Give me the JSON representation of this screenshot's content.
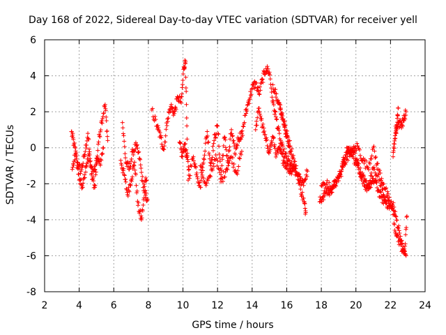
{
  "chart_data": {
    "type": "scatter",
    "title": "Day 168 of 2022, Sidereal Day-to-day VTEC variation (SDTVAR) for receiver yell",
    "xlabel": "GPS time / hours",
    "ylabel": "SDTVAR / TECUs",
    "xlim": [
      2,
      24
    ],
    "ylim": [
      -8,
      6
    ],
    "xticks": [
      2,
      4,
      6,
      8,
      10,
      12,
      14,
      16,
      18,
      20,
      22,
      24
    ],
    "yticks": [
      -8,
      -6,
      -4,
      -2,
      0,
      2,
      4,
      6
    ],
    "grid": true,
    "marker": "+",
    "color": "#ff0000",
    "series": [
      {
        "name": "SDTVAR",
        "segments": [
          {
            "x": [
              3.55,
              3.7,
              3.9,
              4.1,
              4.3,
              4.5,
              4.7,
              4.9,
              5.1,
              5.3,
              5.5,
              5.65
            ],
            "y": [
              0.9,
              0.2,
              -0.8,
              -1.3,
              -0.5,
              0.8,
              -1.5,
              -2.2,
              0.2,
              1.5,
              2.4,
              0.4
            ]
          },
          {
            "x": [
              3.6,
              3.8,
              4.0,
              4.2,
              4.4,
              4.6,
              4.8,
              5.0,
              5.2,
              5.4
            ],
            "y": [
              -1.2,
              -0.3,
              -1.8,
              -2.2,
              -1.0,
              -0.4,
              -1.6,
              -0.6,
              -0.9,
              0.0
            ]
          },
          {
            "x": [
              6.4,
              6.6,
              6.8,
              7.0,
              7.2,
              7.4,
              7.6,
              7.8,
              7.95
            ],
            "y": [
              -0.7,
              -1.5,
              -2.6,
              -1.8,
              -0.8,
              -3.2,
              -4.0,
              -2.4,
              -2.9
            ]
          },
          {
            "x": [
              6.5,
              6.7,
              6.9,
              7.1,
              7.3,
              7.5,
              7.7,
              7.9
            ],
            "y": [
              1.4,
              -0.8,
              -1.2,
              -0.2,
              0.1,
              -0.6,
              -2.2,
              -1.8
            ]
          },
          {
            "x": [
              8.2,
              8.5,
              8.7,
              8.9,
              9.1,
              9.3,
              9.5,
              9.7,
              9.9,
              10.05,
              10.15,
              10.25
            ],
            "y": [
              2.1,
              1.2,
              0.6,
              -0.1,
              1.6,
              2.3,
              1.9,
              2.8,
              2.5,
              4.5,
              4.8,
              -0.3
            ]
          },
          {
            "x": [
              9.8,
              9.95,
              10.1,
              10.2,
              10.35
            ],
            "y": [
              0.3,
              -0.5,
              0.2,
              -0.4,
              -1.2
            ]
          },
          {
            "x": [
              10.3,
              10.6,
              10.8,
              11.0,
              11.2,
              11.4,
              11.6,
              11.8,
              12.0,
              12.2,
              12.4,
              12.6,
              12.8,
              13.0,
              13.2,
              13.4
            ],
            "y": [
              -1.8,
              -0.5,
              -1.4,
              -2.2,
              -0.6,
              0.9,
              -1.0,
              0.4,
              1.2,
              -1.5,
              0.6,
              -0.8,
              1.0,
              -0.3,
              0.5,
              0.8
            ]
          },
          {
            "x": [
              11.0,
              11.3,
              11.6,
              11.9,
              12.2,
              12.5,
              12.8,
              13.1,
              13.4
            ],
            "y": [
              -1.0,
              -2.0,
              -1.6,
              -0.4,
              -1.9,
              -1.2,
              -0.5,
              -1.4,
              -0.2
            ]
          },
          {
            "x": [
              13.4,
              13.6,
              13.8,
              14.0,
              14.2,
              14.4,
              14.6,
              14.8,
              15.0,
              15.2,
              15.4,
              15.6,
              15.8,
              16.0,
              16.2,
              16.4,
              16.6,
              16.8,
              17.0,
              17.2
            ],
            "y": [
              0.6,
              1.8,
              2.6,
              3.3,
              3.6,
              3.0,
              3.8,
              4.4,
              4.2,
              2.5,
              1.6,
              0.5,
              -0.2,
              -0.6,
              -0.9,
              -1.2,
              -1.5,
              -1.8,
              -1.9,
              -1.3
            ]
          },
          {
            "x": [
              14.2,
              14.4,
              14.6,
              14.8,
              15.0,
              15.2,
              15.4,
              15.6,
              15.8,
              16.0,
              16.2,
              16.4
            ],
            "y": [
              1.0,
              2.2,
              1.2,
              0.4,
              -0.2,
              0.6,
              -0.4,
              -0.1,
              -0.7,
              -1.0,
              -1.3,
              -1.1
            ]
          },
          {
            "x": [
              15.6,
              15.8,
              16.0,
              16.2,
              16.4,
              16.6,
              16.8,
              17.0,
              17.1
            ],
            "y": [
              2.4,
              1.5,
              0.8,
              0.1,
              -0.6,
              -1.4,
              -2.3,
              -3.0,
              -3.6
            ]
          },
          {
            "x": [
              15.2,
              15.4,
              15.6,
              15.8,
              16.0,
              16.2
            ],
            "y": [
              3.5,
              3.0,
              2.2,
              1.6,
              0.6,
              -0.3
            ]
          },
          {
            "x": [
              17.9,
              18.1,
              18.3,
              18.5,
              18.7,
              18.9,
              19.1,
              19.3,
              19.5,
              19.7,
              19.9,
              20.1,
              20.3,
              20.5,
              20.7,
              20.9,
              21.1,
              21.3,
              21.5,
              21.7,
              21.9,
              22.1,
              22.3,
              22.5,
              22.7,
              22.9
            ],
            "y": [
              -3.0,
              -2.7,
              -2.4,
              -2.5,
              -2.1,
              -1.9,
              -1.5,
              -0.9,
              -0.3,
              0.0,
              -0.2,
              -0.8,
              -1.5,
              -1.9,
              -2.1,
              -2.0,
              -1.8,
              -2.4,
              -2.8,
              -3.0,
              -3.2,
              -3.4,
              -3.8,
              -4.6,
              -5.6,
              -6.0
            ]
          },
          {
            "x": [
              18.0,
              18.3,
              18.6,
              18.9,
              19.2,
              19.5,
              19.8,
              20.1,
              20.4,
              20.7,
              21.0,
              21.3,
              21.6,
              21.9,
              22.2
            ],
            "y": [
              -2.1,
              -2.0,
              -2.3,
              -1.9,
              -1.0,
              -0.5,
              -0.2,
              0.1,
              -0.7,
              -1.1,
              0.0,
              -1.2,
              -2.0,
              -2.9,
              -3.3
            ]
          },
          {
            "x": [
              19.2,
              19.5,
              19.8,
              20.1,
              20.4,
              20.7,
              21.0,
              21.3,
              21.6,
              21.9
            ],
            "y": [
              -0.9,
              0.0,
              -0.5,
              -1.0,
              -2.0,
              -2.3,
              -1.2,
              -1.5,
              -2.6,
              -3.1
            ]
          },
          {
            "x": [
              22.2,
              22.4,
              22.6,
              22.8,
              22.95
            ],
            "y": [
              -4.2,
              -4.9,
              -5.4,
              -5.9,
              -3.8
            ]
          },
          {
            "x": [
              22.3,
              22.45,
              22.6,
              22.75,
              22.9
            ],
            "y": [
              1.2,
              1.4,
              1.3,
              1.5,
              2.0
            ]
          },
          {
            "x": [
              22.15,
              22.25,
              22.35,
              22.45
            ],
            "y": [
              -0.5,
              0.5,
              1.0,
              2.2
            ]
          }
        ]
      }
    ]
  }
}
